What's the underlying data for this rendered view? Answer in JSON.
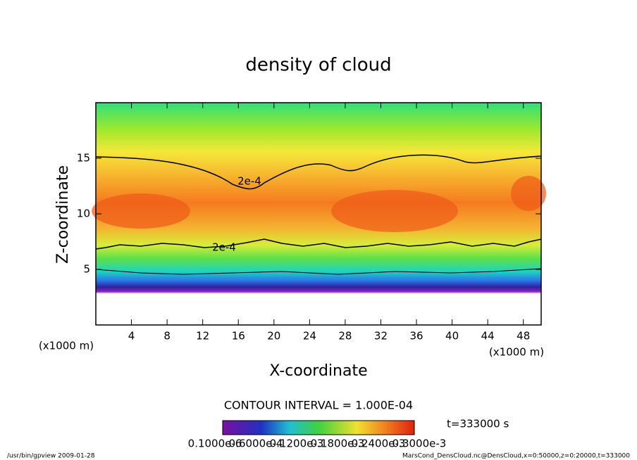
{
  "chart_data": {
    "type": "contour",
    "title": "density of cloud",
    "x_label": "X-coordinate",
    "y_label": "Z-coordinate",
    "x_unit": "(x1000 m)",
    "y_unit": "(x1000 m)",
    "xlim": [
      0,
      50
    ],
    "xticks": [
      4,
      8,
      12,
      16,
      20,
      24,
      28,
      32,
      36,
      40,
      44,
      48
    ],
    "ylim": [
      0,
      20
    ],
    "yticks": [
      5,
      10,
      15
    ],
    "contour_labels": [
      "2e-4",
      "2e-4"
    ],
    "contour_interval": "CONTOUR INTERVAL = 1.000E-04",
    "time": "t=333000 s",
    "colorbar_labels": [
      "0.1000e-6",
      "0.6000e-4",
      "0.1200e-3",
      "0.1800e-3",
      "0.2400e-3",
      "0.3000e-3"
    ]
  },
  "footer": {
    "left": "/usr/bin/gpview  2009-01-28",
    "right": "MarsCond_DensCloud.nc@DensCloud,x=0:50000,z=0:20000,t=333000"
  }
}
